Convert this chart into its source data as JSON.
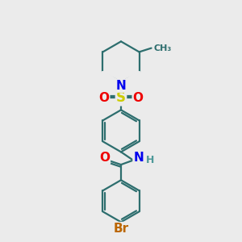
{
  "bg_color": "#ebebeb",
  "bond_color": "#2d6e6e",
  "bond_width": 1.6,
  "atom_colors": {
    "N": "#0000ee",
    "O": "#ee0000",
    "S": "#cccc00",
    "Br": "#bb6600",
    "C": "#2d6e6e",
    "H": "#4d9999"
  },
  "font_size_atom": 11,
  "font_size_small": 9
}
